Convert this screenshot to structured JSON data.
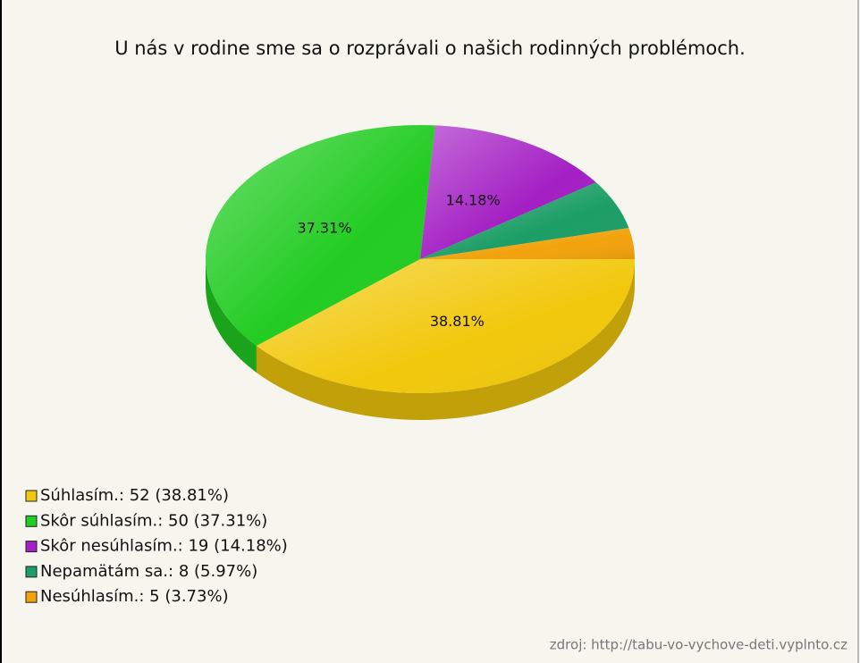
{
  "chart_data": {
    "type": "pie",
    "title": "U nás v rodine sme sa o rozprávali o našich rodinných problémoch.",
    "categories": [
      "Súhlasím.",
      "Skôr súhlasím.",
      "Skôr nesúhlasím.",
      "Nepamätám sa.",
      "Nesúhlasím."
    ],
    "values": [
      38.81,
      37.31,
      14.18,
      5.97,
      3.73
    ],
    "value_labels": [
      "38.81%",
      "37.31%",
      "14.18%",
      null,
      null
    ],
    "counts": [
      52,
      50,
      19,
      8,
      5
    ],
    "legend_labels": [
      "Súhlasím.: 52 (38.81%)",
      "Skôr súhlasím.: 50 (37.31%)",
      "Skôr nesúhlasím.: 19 (14.18%)",
      "Nepamätám sa.: 8 (5.97%)",
      "Nesúhlasím.: 5 (3.73%)"
    ],
    "colors": [
      "#f2c80c",
      "#22cc22",
      "#a41fc4",
      "#1c9e66",
      "#f2a20c"
    ],
    "source": "zdroj: http://tabu-vo-vychove-deti.vyplnto.cz"
  }
}
